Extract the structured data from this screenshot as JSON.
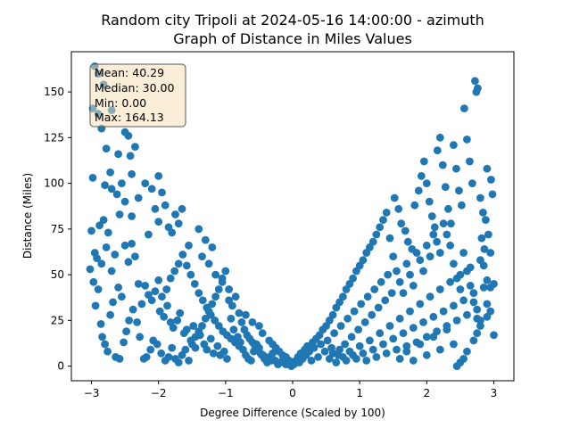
{
  "chart_data": {
    "type": "scatter",
    "title_line1": "Random city Tripoli at 2024-05-16 14:00:00  - azimuth",
    "title_line2": "Graph of Distance in Miles Values",
    "xlabel": "Degree Difference (Scaled by 100)",
    "ylabel": "Distance (Miles)",
    "xlim": [
      -3.3,
      3.3
    ],
    "ylim": [
      -8,
      172
    ],
    "x_ticks": [
      -3,
      -2,
      -1,
      0,
      1,
      2,
      3
    ],
    "y_ticks": [
      0,
      25,
      50,
      75,
      100,
      125,
      150
    ],
    "marker_color": "#1f77b4",
    "grid": false,
    "stats": {
      "mean": "Mean: 40.29",
      "median": "Median: 30.00",
      "min": "Min: 0.00",
      "max": "Max: 164.13"
    },
    "points": [
      [
        -2.95,
        164
      ],
      [
        -2.9,
        160
      ],
      [
        -2.82,
        154
      ],
      [
        -2.98,
        141
      ],
      [
        -2.9,
        138
      ],
      [
        -2.85,
        130
      ],
      [
        -2.7,
        140
      ],
      [
        -2.78,
        119
      ],
      [
        -2.6,
        116
      ],
      [
        -2.72,
        106
      ],
      [
        -2.5,
        128
      ],
      [
        -2.45,
        126
      ],
      [
        -2.42,
        115
      ],
      [
        -2.35,
        120
      ],
      [
        -2.55,
        100
      ],
      [
        -2.8,
        99
      ],
      [
        -2.7,
        97
      ],
      [
        -2.98,
        103
      ],
      [
        -2.62,
        94
      ],
      [
        -2.4,
        105
      ],
      [
        -2.3,
        92
      ],
      [
        -2.5,
        90
      ],
      [
        -2.58,
        83
      ],
      [
        -2.4,
        82
      ],
      [
        -2.2,
        100
      ],
      [
        -2.1,
        97
      ],
      [
        -2.0,
        104
      ],
      [
        -1.95,
        95
      ],
      [
        -1.9,
        88
      ],
      [
        -2.05,
        86
      ],
      [
        -1.85,
        76
      ],
      [
        -1.75,
        83
      ],
      [
        -1.65,
        86
      ],
      [
        -1.7,
        78
      ],
      [
        -1.8,
        73
      ],
      [
        -2.15,
        72
      ],
      [
        -2.0,
        79
      ],
      [
        -1.55,
        66
      ],
      [
        -1.4,
        75
      ],
      [
        -1.3,
        69
      ],
      [
        -1.2,
        65
      ],
      [
        -1.35,
        60
      ],
      [
        -1.25,
        56
      ],
      [
        -1.15,
        50
      ],
      [
        -1.05,
        46
      ],
      [
        -0.95,
        42
      ],
      [
        -0.85,
        38
      ],
      [
        -0.9,
        33
      ],
      [
        -0.8,
        29
      ],
      [
        -0.7,
        28
      ],
      [
        -0.6,
        24
      ],
      [
        -0.5,
        22
      ],
      [
        -0.45,
        18
      ],
      [
        -0.35,
        14
      ],
      [
        -0.3,
        12
      ],
      [
        -0.25,
        10
      ],
      [
        -0.2,
        8
      ],
      [
        -0.15,
        6
      ],
      [
        -0.1,
        5
      ],
      [
        -0.05,
        3
      ],
      [
        -3.0,
        74
      ],
      [
        -2.95,
        62
      ],
      [
        -2.92,
        59
      ],
      [
        -2.85,
        56
      ],
      [
        -2.88,
        77
      ],
      [
        -2.82,
        80
      ],
      [
        -2.78,
        65
      ],
      [
        -2.75,
        73
      ],
      [
        -2.7,
        52
      ],
      [
        -2.65,
        61
      ],
      [
        -2.6,
        43
      ],
      [
        -2.55,
        38
      ],
      [
        -2.5,
        66
      ],
      [
        -2.45,
        57
      ],
      [
        -2.4,
        67
      ],
      [
        -2.35,
        60
      ],
      [
        -2.3,
        45
      ],
      [
        -2.25,
        34
      ],
      [
        -2.2,
        44
      ],
      [
        -2.15,
        39
      ],
      [
        -2.1,
        36
      ],
      [
        -2.05,
        41
      ],
      [
        -2.0,
        47
      ],
      [
        -1.98,
        30
      ],
      [
        -1.92,
        27
      ],
      [
        -1.87,
        33
      ],
      [
        -1.82,
        24
      ],
      [
        -1.78,
        21
      ],
      [
        -1.72,
        25
      ],
      [
        -1.68,
        29
      ],
      [
        -1.62,
        18
      ],
      [
        -1.58,
        20
      ],
      [
        -1.52,
        14
      ],
      [
        -1.48,
        22
      ],
      [
        -1.45,
        10
      ],
      [
        -1.38,
        17
      ],
      [
        -1.32,
        12
      ],
      [
        -1.28,
        9
      ],
      [
        -1.22,
        15
      ],
      [
        -1.18,
        7
      ],
      [
        -1.12,
        11
      ],
      [
        -1.08,
        6
      ],
      [
        -1.02,
        8
      ],
      [
        -0.98,
        4
      ],
      [
        -3.02,
        53
      ],
      [
        -2.97,
        46
      ],
      [
        -2.94,
        33
      ],
      [
        -2.9,
        42
      ],
      [
        -2.86,
        23
      ],
      [
        -2.84,
        16
      ],
      [
        -2.8,
        12
      ],
      [
        -2.76,
        8
      ],
      [
        -2.72,
        28
      ],
      [
        -2.68,
        35
      ],
      [
        -2.64,
        5
      ],
      [
        -2.58,
        4
      ],
      [
        -2.52,
        13
      ],
      [
        -2.48,
        19
      ],
      [
        -2.44,
        25
      ],
      [
        -2.38,
        31
      ],
      [
        -2.32,
        24
      ],
      [
        -2.28,
        16
      ],
      [
        -2.22,
        4
      ],
      [
        -2.18,
        5
      ],
      [
        -2.12,
        9
      ],
      [
        -2.08,
        14
      ],
      [
        -2.02,
        12
      ],
      [
        -1.96,
        7
      ],
      [
        -1.9,
        3
      ],
      [
        -1.85,
        5
      ],
      [
        -1.8,
        10
      ],
      [
        -1.75,
        4
      ],
      [
        -1.7,
        2
      ],
      [
        -1.65,
        6
      ],
      [
        -1.6,
        9
      ],
      [
        -1.55,
        3
      ],
      [
        -1.5,
        12
      ],
      [
        -1.45,
        16
      ],
      [
        -1.4,
        19
      ],
      [
        -1.35,
        22
      ],
      [
        -1.3,
        26
      ],
      [
        -1.25,
        30
      ],
      [
        -1.2,
        34
      ],
      [
        -1.15,
        38
      ],
      [
        -1.1,
        42
      ],
      [
        -1.05,
        48
      ],
      [
        -1.0,
        52
      ],
      [
        -0.95,
        36
      ],
      [
        -0.92,
        26
      ],
      [
        -0.88,
        20
      ],
      [
        -0.82,
        16
      ],
      [
        -0.78,
        13
      ],
      [
        -0.74,
        9
      ],
      [
        -0.7,
        6
      ],
      [
        -0.66,
        4
      ],
      [
        -0.62,
        3
      ],
      [
        -0.58,
        8
      ],
      [
        -0.54,
        12
      ],
      [
        -0.5,
        10
      ],
      [
        -0.46,
        6
      ],
      [
        -0.42,
        4
      ],
      [
        -0.38,
        2
      ],
      [
        -0.34,
        5
      ],
      [
        -0.3,
        7
      ],
      [
        -0.26,
        3
      ],
      [
        -0.22,
        1
      ],
      [
        -0.18,
        2
      ],
      [
        -0.14,
        4
      ],
      [
        -0.1,
        1
      ],
      [
        -0.06,
        2
      ],
      [
        -0.02,
        0
      ],
      [
        -1.95,
        38
      ],
      [
        -1.88,
        42
      ],
      [
        -1.82,
        48
      ],
      [
        -1.76,
        52
      ],
      [
        -1.7,
        56
      ],
      [
        -1.64,
        61
      ],
      [
        -1.58,
        55
      ],
      [
        -1.52,
        50
      ],
      [
        -1.46,
        45
      ],
      [
        -1.4,
        40
      ],
      [
        -1.34,
        36
      ],
      [
        -1.28,
        32
      ],
      [
        -1.22,
        28
      ],
      [
        -1.16,
        25
      ],
      [
        -1.1,
        22
      ],
      [
        -1.04,
        19
      ],
      [
        -0.98,
        17
      ],
      [
        -0.92,
        15
      ],
      [
        -0.86,
        13
      ],
      [
        -0.8,
        11
      ],
      [
        -0.76,
        24
      ],
      [
        -0.72,
        20
      ],
      [
        -0.68,
        17
      ],
      [
        -0.64,
        15
      ],
      [
        -0.6,
        13
      ],
      [
        -0.56,
        11
      ],
      [
        -0.52,
        9
      ],
      [
        -0.48,
        7
      ],
      [
        -0.44,
        6
      ],
      [
        -0.4,
        5
      ],
      [
        -0.36,
        4
      ],
      [
        -0.32,
        3
      ],
      [
        0.02,
        1
      ],
      [
        0.05,
        3
      ],
      [
        0.08,
        5
      ],
      [
        0.1,
        2
      ],
      [
        0.12,
        7
      ],
      [
        0.15,
        4
      ],
      [
        0.18,
        9
      ],
      [
        0.2,
        6
      ],
      [
        0.22,
        11
      ],
      [
        0.25,
        8
      ],
      [
        0.28,
        3
      ],
      [
        0.3,
        13
      ],
      [
        0.32,
        10
      ],
      [
        0.35,
        15
      ],
      [
        0.38,
        5
      ],
      [
        0.4,
        17
      ],
      [
        0.42,
        12
      ],
      [
        0.45,
        20
      ],
      [
        0.48,
        8
      ],
      [
        0.5,
        22
      ],
      [
        0.52,
        14
      ],
      [
        0.55,
        25
      ],
      [
        0.58,
        10
      ],
      [
        0.6,
        28
      ],
      [
        0.62,
        18
      ],
      [
        0.65,
        32
      ],
      [
        0.68,
        6
      ],
      [
        0.7,
        35
      ],
      [
        0.72,
        22
      ],
      [
        0.75,
        38
      ],
      [
        0.78,
        12
      ],
      [
        0.8,
        42
      ],
      [
        0.82,
        26
      ],
      [
        0.85,
        45
      ],
      [
        0.88,
        16
      ],
      [
        0.9,
        48
      ],
      [
        0.92,
        30
      ],
      [
        0.95,
        52
      ],
      [
        0.98,
        20
      ],
      [
        1.0,
        55
      ],
      [
        1.02,
        34
      ],
      [
        1.05,
        58
      ],
      [
        1.08,
        24
      ],
      [
        1.1,
        62
      ],
      [
        1.12,
        38
      ],
      [
        1.15,
        65
      ],
      [
        1.18,
        28
      ],
      [
        1.2,
        68
      ],
      [
        1.22,
        42
      ],
      [
        1.25,
        72
      ],
      [
        1.28,
        32
      ],
      [
        1.3,
        76
      ],
      [
        1.32,
        46
      ],
      [
        1.35,
        80
      ],
      [
        1.38,
        36
      ],
      [
        1.4,
        84
      ],
      [
        1.42,
        50
      ],
      [
        1.45,
        70
      ],
      [
        1.48,
        40
      ],
      [
        1.5,
        60
      ],
      [
        0.55,
        4
      ],
      [
        0.6,
        7
      ],
      [
        0.65,
        2
      ],
      [
        0.7,
        9
      ],
      [
        0.75,
        5
      ],
      [
        0.8,
        3
      ],
      [
        0.85,
        8
      ],
      [
        0.9,
        6
      ],
      [
        0.95,
        4
      ],
      [
        1.0,
        11
      ],
      [
        1.05,
        7
      ],
      [
        1.1,
        3
      ],
      [
        1.15,
        14
      ],
      [
        1.2,
        9
      ],
      [
        1.25,
        5
      ],
      [
        1.3,
        18
      ],
      [
        1.35,
        12
      ],
      [
        1.4,
        7
      ],
      [
        1.45,
        22
      ],
      [
        1.5,
        15
      ],
      [
        1.55,
        9
      ],
      [
        1.6,
        26
      ],
      [
        1.65,
        18
      ],
      [
        1.7,
        11
      ],
      [
        1.75,
        30
      ],
      [
        1.8,
        21
      ],
      [
        1.85,
        13
      ],
      [
        1.9,
        34
      ],
      [
        1.95,
        24
      ],
      [
        2.0,
        16
      ],
      [
        2.05,
        38
      ],
      [
        2.1,
        27
      ],
      [
        2.15,
        19
      ],
      [
        2.2,
        42
      ],
      [
        2.25,
        30
      ],
      [
        2.3,
        22
      ],
      [
        2.35,
        46
      ],
      [
        2.4,
        33
      ],
      [
        2.45,
        25
      ],
      [
        2.5,
        50
      ],
      [
        2.55,
        36
      ],
      [
        2.6,
        28
      ],
      [
        2.65,
        54
      ],
      [
        2.7,
        40
      ],
      [
        2.75,
        31
      ],
      [
        2.8,
        58
      ],
      [
        2.85,
        43
      ],
      [
        2.9,
        34
      ],
      [
        2.95,
        62
      ],
      [
        3.0,
        45
      ],
      [
        1.52,
        92
      ],
      [
        1.58,
        86
      ],
      [
        1.62,
        78
      ],
      [
        1.68,
        74
      ],
      [
        1.72,
        68
      ],
      [
        1.78,
        64
      ],
      [
        1.82,
        88
      ],
      [
        1.88,
        96
      ],
      [
        1.92,
        104
      ],
      [
        1.96,
        112
      ],
      [
        2.0,
        100
      ],
      [
        2.04,
        90
      ],
      [
        2.08,
        82
      ],
      [
        2.12,
        76
      ],
      [
        2.16,
        118
      ],
      [
        2.2,
        125
      ],
      [
        2.24,
        110
      ],
      [
        2.28,
        98
      ],
      [
        2.32,
        86
      ],
      [
        2.36,
        78
      ],
      [
        2.4,
        121
      ],
      [
        2.44,
        108
      ],
      [
        2.48,
        96
      ],
      [
        2.52,
        88
      ],
      [
        2.56,
        141
      ],
      [
        2.6,
        124
      ],
      [
        2.64,
        112
      ],
      [
        2.68,
        100
      ],
      [
        2.72,
        156
      ],
      [
        2.74,
        150
      ],
      [
        2.76,
        152
      ],
      [
        2.8,
        92
      ],
      [
        2.84,
        84
      ],
      [
        2.88,
        80
      ],
      [
        2.92,
        72
      ],
      [
        2.96,
        102
      ],
      [
        2.98,
        94
      ],
      [
        2.9,
        108
      ],
      [
        2.86,
        64
      ],
      [
        2.82,
        70
      ],
      [
        1.55,
        52
      ],
      [
        1.6,
        46
      ],
      [
        1.65,
        40
      ],
      [
        1.7,
        56
      ],
      [
        1.75,
        50
      ],
      [
        1.8,
        44
      ],
      [
        1.85,
        62
      ],
      [
        1.9,
        58
      ],
      [
        1.95,
        52
      ],
      [
        2.0,
        66
      ],
      [
        2.05,
        60
      ],
      [
        2.1,
        72
      ],
      [
        2.15,
        68
      ],
      [
        2.2,
        62
      ],
      [
        2.25,
        78
      ],
      [
        2.3,
        72
      ],
      [
        2.35,
        66
      ],
      [
        2.4,
        56
      ],
      [
        2.45,
        48
      ],
      [
        2.5,
        42
      ],
      [
        2.55,
        62
      ],
      [
        2.6,
        52
      ],
      [
        2.65,
        44
      ],
      [
        2.7,
        35
      ],
      [
        2.75,
        26
      ],
      [
        2.8,
        25
      ],
      [
        2.85,
        55
      ],
      [
        2.9,
        47
      ],
      [
        2.95,
        43
      ],
      [
        3.0,
        17
      ],
      [
        1.6,
        4
      ],
      [
        1.7,
        8
      ],
      [
        1.8,
        3
      ],
      [
        1.9,
        12
      ],
      [
        2.0,
        6
      ],
      [
        2.1,
        16
      ],
      [
        2.2,
        9
      ],
      [
        2.3,
        20
      ],
      [
        2.4,
        12
      ],
      [
        2.45,
        0
      ],
      [
        2.5,
        2
      ],
      [
        2.55,
        4
      ],
      [
        2.6,
        8
      ],
      [
        2.7,
        14
      ],
      [
        2.75,
        18
      ],
      [
        2.8,
        22
      ],
      [
        2.9,
        27
      ],
      [
        2.95,
        30
      ]
    ]
  }
}
